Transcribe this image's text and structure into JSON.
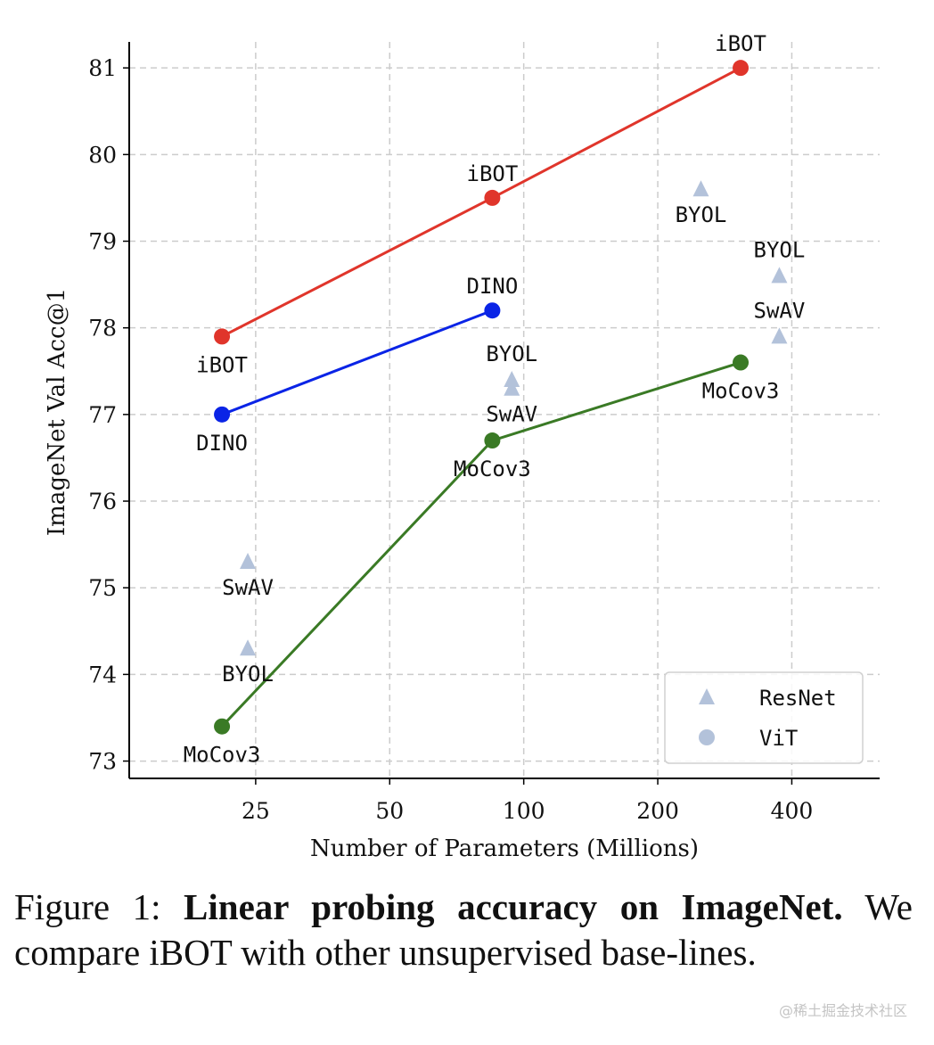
{
  "chart_data": {
    "type": "line",
    "ylabel": "ImageNet Val Acc@1",
    "xlabel": "Number of Parameters (Millions)",
    "xscale": "log",
    "x_ticks": [
      25,
      50,
      100,
      200,
      400
    ],
    "x_tick_labels": [
      "25",
      "50",
      "100",
      "200",
      "400"
    ],
    "xlim": [
      13,
      630
    ],
    "ylim": [
      72.8,
      81.3
    ],
    "y_ticks": [
      73,
      74,
      75,
      76,
      77,
      78,
      79,
      80,
      81
    ],
    "y_tick_labels": [
      "73",
      "74",
      "75",
      "76",
      "77",
      "78",
      "79",
      "80",
      "81"
    ],
    "grid": true,
    "series": [
      {
        "name": "iBOT",
        "color": "#e0352b",
        "marker": "circle",
        "group": "ViT",
        "x": [
          21,
          85,
          307
        ],
        "y": [
          77.9,
          79.5,
          81.0
        ],
        "labels": [
          "iBOT",
          "iBOT",
          "iBOT"
        ],
        "label_pos": [
          "below",
          "above",
          "above"
        ]
      },
      {
        "name": "DINO",
        "color": "#0a24e6",
        "marker": "circle",
        "group": "ViT",
        "x": [
          21,
          85
        ],
        "y": [
          77.0,
          78.2
        ],
        "labels": [
          "DINO",
          "DINO"
        ],
        "label_pos": [
          "below",
          "above"
        ]
      },
      {
        "name": "MoCov3",
        "color": "#3a7a25",
        "marker": "circle",
        "group": "ViT",
        "x": [
          21,
          85,
          307
        ],
        "y": [
          73.4,
          76.7,
          77.6
        ],
        "labels": [
          "MoCov3",
          "MoCov3",
          "MoCov3"
        ],
        "label_pos": [
          "below",
          "below",
          "below"
        ]
      }
    ],
    "resnet_points": {
      "color": "#b3c2da",
      "marker": "triangle",
      "points": [
        {
          "label": "SwAV",
          "x": 24,
          "y": 75.3,
          "label_pos": "below"
        },
        {
          "label": "BYOL",
          "x": 24,
          "y": 74.3,
          "label_pos": "below"
        },
        {
          "label": "BYOL",
          "x": 94,
          "y": 77.4,
          "label_pos": "above"
        },
        {
          "label": "SwAV",
          "x": 94,
          "y": 77.3,
          "label_pos": "below"
        },
        {
          "label": "BYOL",
          "x": 250,
          "y": 79.6,
          "label_pos": "below"
        },
        {
          "label": "BYOL",
          "x": 375,
          "y": 78.6,
          "label_pos": "above"
        },
        {
          "label": "SwAV",
          "x": 375,
          "y": 77.9,
          "label_pos": "above"
        }
      ]
    },
    "legend": {
      "placement": "bottom-right",
      "entries": [
        {
          "label": "ResNet",
          "marker": "triangle",
          "color": "#b3c2da"
        },
        {
          "label": "ViT",
          "marker": "circle",
          "color": "#b3c2da"
        }
      ]
    }
  },
  "caption": {
    "prefix": "Figure 1: ",
    "bold": "Linear probing accuracy on ImageNet.",
    "text": " We compare iBOT with other unsupervised base-lines."
  },
  "watermark": "@稀土掘金技术社区"
}
